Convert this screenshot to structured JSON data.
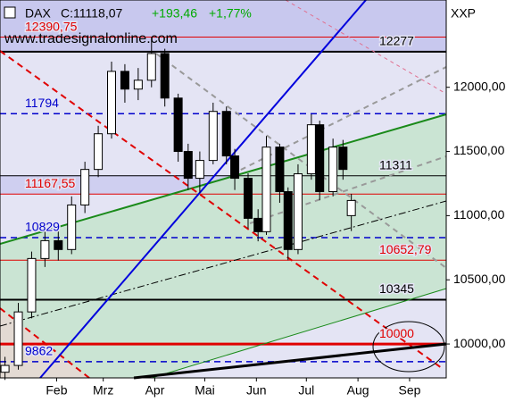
{
  "chart_data": {
    "type": "candlestick",
    "title": "DAX",
    "last": "C:11118,07",
    "change": "+193,46",
    "change_pct": "+1,77%",
    "symbol": "XXP",
    "watermark": "www.tradesignalonline.com",
    "xlim": [
      -3,
      265
    ],
    "xticks": [
      {
        "value": 31,
        "label": "Feb"
      },
      {
        "value": 59,
        "label": "Mrz"
      },
      {
        "value": 90,
        "label": "Apr"
      },
      {
        "value": 120,
        "label": "Mai"
      },
      {
        "value": 151,
        "label": "Jun"
      },
      {
        "value": 181,
        "label": "Jul"
      },
      {
        "value": 212,
        "label": "Aug"
      },
      {
        "value": 243,
        "label": "Sep"
      }
    ],
    "ylim": [
      9736,
      12680
    ],
    "yticks": [
      {
        "value": 10000,
        "label": "10000,00"
      },
      {
        "value": 10500,
        "label": "10500,00"
      },
      {
        "value": 11000,
        "label": "11000,00"
      },
      {
        "value": 11500,
        "label": "11500,00"
      },
      {
        "value": 12000,
        "label": "12000,00"
      }
    ],
    "up_color": "#ffffff",
    "down_color": "#000000",
    "x": [
      0,
      8,
      16,
      24,
      32,
      40,
      48,
      56,
      64,
      72,
      80,
      88,
      96,
      104,
      110,
      117,
      125,
      133,
      138,
      146,
      152,
      157,
      165,
      170,
      176,
      184,
      189,
      197,
      203,
      208
    ],
    "open": [
      9780,
      9833,
      10250,
      10666,
      10805,
      10736,
      11083,
      11360,
      11638,
      12124,
      11986,
      12055,
      12263,
      11916,
      11500,
      11291,
      11430,
      11812,
      11465,
      11291,
      10979,
      10875,
      11534,
      11187,
      10736,
      11326,
      11708,
      11187,
      11534,
      11000
    ],
    "high": [
      9900,
      10320,
      10720,
      10880,
      10900,
      11150,
      11420,
      11700,
      12200,
      12180,
      12150,
      12390.75,
      12300,
      11950,
      11560,
      11500,
      11880,
      11850,
      11520,
      11330,
      11050,
      11620,
      11560,
      11220,
      11400,
      11790,
      11740,
      11600,
      11590,
      11170
    ],
    "low": [
      9720,
      9800,
      10200,
      10600,
      10650,
      10700,
      11020,
      11300,
      11600,
      11880,
      11900,
      12000,
      11850,
      11420,
      11200,
      11180,
      11400,
      11400,
      11200,
      10900,
      10800,
      10850,
      11100,
      10652.79,
      10700,
      11280,
      11120,
      11150,
      11280,
      10880
    ],
    "close": [
      9833,
      10250,
      10666,
      10805,
      10736,
      11083,
      11360,
      11638,
      12124,
      11986,
      12055,
      12263,
      11916,
      11500,
      11291,
      11430,
      11812,
      11465,
      11291,
      10979,
      10875,
      11534,
      11187,
      10736,
      11326,
      11708,
      11187,
      11534,
      11360,
      11118.07
    ],
    "levels": [
      {
        "value": 12390.75,
        "label": "12390,75",
        "color": "#e00000",
        "style": "solid",
        "width": 1,
        "side": "left"
      },
      {
        "value": 12277,
        "label": "12277",
        "color": "#000000",
        "style": "solid",
        "width": 2,
        "side": "right"
      },
      {
        "value": 11794,
        "label": "11794",
        "color": "#0000cc",
        "style": "dashed",
        "width": 1.5,
        "side": "left"
      },
      {
        "value": 11311,
        "label": "11311",
        "color": "#000000",
        "style": "solid",
        "width": 1,
        "side": "right"
      },
      {
        "value": 11167.55,
        "label": "11167,55",
        "color": "#e00000",
        "style": "solid",
        "width": 1,
        "side": "left"
      },
      {
        "value": 10829,
        "label": "10829",
        "color": "#0000cc",
        "style": "dashed",
        "width": 1.5,
        "side": "left"
      },
      {
        "value": 10652.79,
        "label": "10652,79",
        "color": "#e00000",
        "style": "solid",
        "width": 1,
        "side": "right"
      },
      {
        "value": 10345,
        "label": "10345",
        "color": "#000000",
        "style": "solid",
        "width": 2,
        "side": "right"
      },
      {
        "value": 10000,
        "label": "10000",
        "color": "#e00000",
        "style": "solid",
        "width": 3,
        "side": "right"
      },
      {
        "value": 9862,
        "label": "9862",
        "color": "#0000cc",
        "style": "dashed",
        "width": 1.5,
        "side": "left"
      }
    ]
  }
}
